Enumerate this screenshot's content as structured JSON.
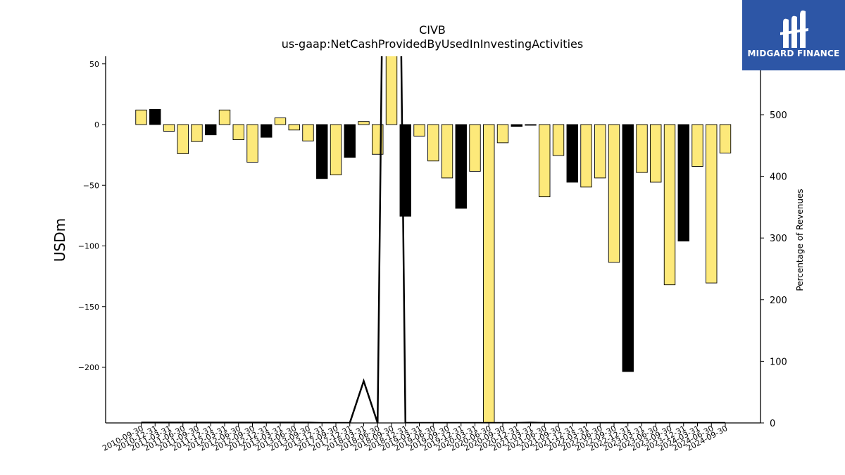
{
  "chart_data": {
    "type": "bar",
    "title": "CIVB",
    "subtitle": "us-gaap:NetCashProvidedByUsedInInvestingActivities",
    "ylabel": "USDm",
    "y2label": "Percentage of Revenues",
    "ylim": [
      -245,
      55
    ],
    "y2lim": [
      0,
      593
    ],
    "yticks": [
      50,
      0,
      -50,
      -100,
      -150,
      -200
    ],
    "yticklabels": [
      "50",
      "0",
      "−50",
      "−100",
      "−150",
      "−200"
    ],
    "y2ticks": [
      0,
      100,
      200,
      300,
      400,
      500
    ],
    "y2ticklabels": [
      "0",
      "100",
      "200",
      "300",
      "400",
      "500"
    ],
    "colors": {
      "positive_yellow": "#fde97a",
      "black": "#000000"
    },
    "categories": [
      "2010-09-30",
      "2010-12-31",
      "2011-03-31",
      "2011-06-30",
      "2011-09-30",
      "2011-12-31",
      "2012-03-31",
      "2012-06-30",
      "2012-09-30",
      "2012-12-31",
      "2013-03-31",
      "2013-06-30",
      "2013-09-30",
      "2013-12-31",
      "2017-09-30",
      "2017-12-31",
      "2018-03-31",
      "2018-06-30",
      "2018-09-30",
      "2018-12-31",
      "2019-03-31",
      "2019-06-30",
      "2019-09-30",
      "2019-12-31",
      "2020-03-31",
      "2020-06-30",
      "2020-09-30",
      "2020-12-31",
      "2021-03-31",
      "2021-06-30",
      "2021-09-30",
      "2021-12-31",
      "2022-03-31",
      "2022-06-30",
      "2022-09-30",
      "2022-12-31",
      "2023-03-31",
      "2023-06-30",
      "2023-09-30",
      "2023-12-31",
      "2024-03-31",
      "2024-06-30",
      "2024-09-30"
    ],
    "values": [
      12,
      12.5,
      -5.5,
      -24,
      -14,
      -8.5,
      12,
      -12.5,
      -31,
      -10.5,
      5.5,
      -4.5,
      -13.5,
      -44.5,
      -41.5,
      -27,
      2.5,
      -24.5,
      160,
      -75.5,
      -9.5,
      -30,
      -44,
      -69,
      -38.5,
      -250,
      -15,
      -1.5,
      -0.5,
      -59.5,
      -25.5,
      -47.5,
      -51.5,
      -44,
      -113.5,
      -203.5,
      -39.5,
      -47.5,
      -132,
      -96,
      -34.5,
      -130.5,
      -23.5
    ],
    "bar_colors": [
      "yellow",
      "black",
      "yellow",
      "yellow",
      "yellow",
      "black",
      "yellow",
      "yellow",
      "yellow",
      "black",
      "yellow",
      "yellow",
      "yellow",
      "black",
      "yellow",
      "black",
      "yellow",
      "yellow",
      "yellow",
      "black",
      "yellow",
      "yellow",
      "yellow",
      "black",
      "yellow",
      "yellow",
      "yellow",
      "black",
      "black",
      "yellow",
      "yellow",
      "black",
      "yellow",
      "yellow",
      "yellow",
      "black",
      "yellow",
      "yellow",
      "yellow",
      "black",
      "yellow",
      "yellow",
      "yellow"
    ],
    "series_line": {
      "values": [
        0.5,
        0.5,
        0.5,
        0.5,
        0.5,
        0.5,
        0.5,
        0.5,
        0.5,
        0.5,
        0.5,
        0.5,
        0.5,
        0,
        0,
        0,
        68,
        0,
        2000,
        0,
        0,
        0,
        0,
        0,
        0,
        0,
        0,
        0,
        0.5,
        0,
        0,
        0,
        0,
        0,
        0,
        0,
        0,
        0,
        0,
        0,
        0,
        0,
        0
      ]
    }
  },
  "logo": {
    "text": "MIDGARD FINANCE"
  }
}
